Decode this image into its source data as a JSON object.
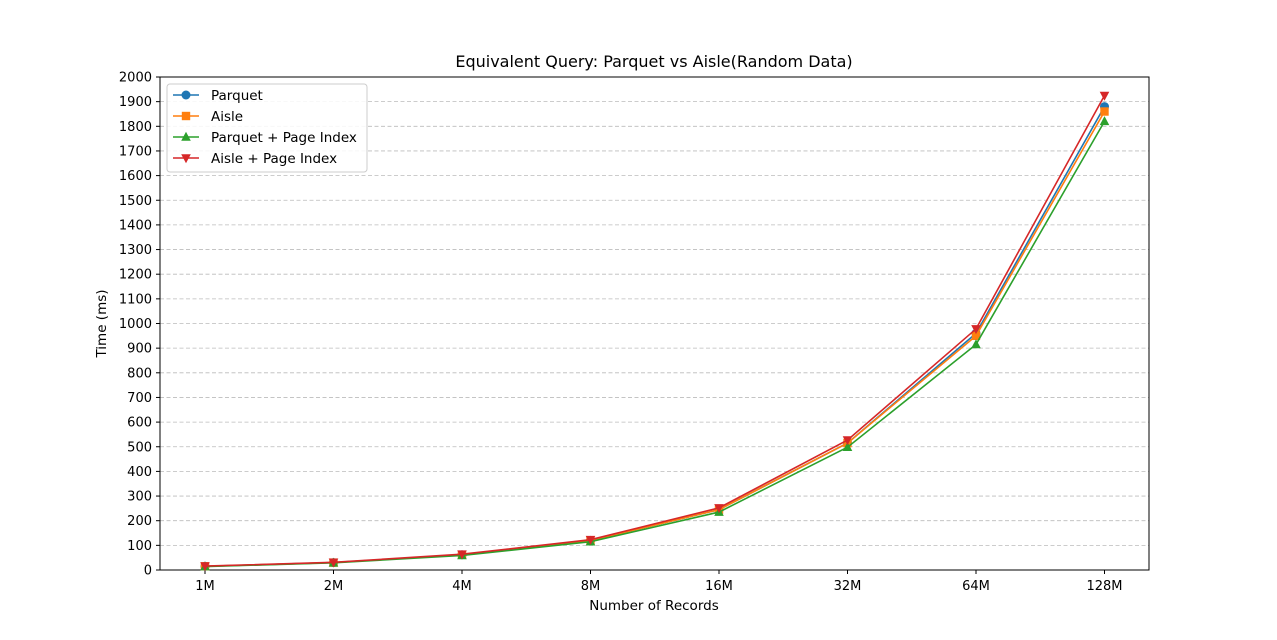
{
  "chart_data": {
    "type": "line",
    "title": "Equivalent Query: Parquet vs Aisle(Random Data)",
    "xlabel": "Number of Records",
    "ylabel": "Time (ms)",
    "categories": [
      "1M",
      "2M",
      "4M",
      "8M",
      "16M",
      "32M",
      "64M",
      "128M"
    ],
    "ylim": [
      0,
      2000
    ],
    "yticks": [
      0,
      100,
      200,
      300,
      400,
      500,
      600,
      700,
      800,
      900,
      1000,
      1100,
      1200,
      1300,
      1400,
      1500,
      1600,
      1700,
      1800,
      1900,
      2000
    ],
    "grid": "y-dashed",
    "legend_position": "top-left",
    "series": [
      {
        "name": "Parquet",
        "color": "#1f77b4",
        "marker": "circle",
        "values": [
          15,
          30,
          62,
          120,
          245,
          515,
          960,
          1880
        ]
      },
      {
        "name": "Aisle",
        "color": "#ff7f0e",
        "marker": "square",
        "values": [
          15,
          30,
          62,
          120,
          245,
          515,
          950,
          1860
        ]
      },
      {
        "name": "Parquet + Page Index",
        "color": "#2ca02c",
        "marker": "triangle-up",
        "values": [
          14,
          29,
          59,
          115,
          235,
          498,
          915,
          1820
        ]
      },
      {
        "name": "Aisle + Page Index",
        "color": "#d62728",
        "marker": "triangle-down",
        "values": [
          16,
          31,
          64,
          123,
          252,
          527,
          978,
          1925
        ]
      }
    ]
  }
}
